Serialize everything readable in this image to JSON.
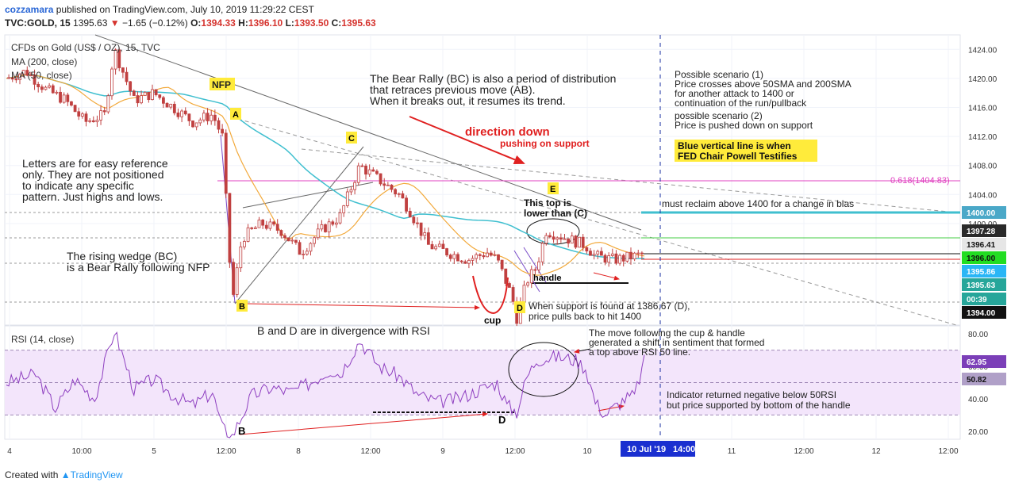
{
  "header": {
    "user": "cozzamara",
    "published": "published on TradingView.com, July 10, 2019 11:29:22 CEST",
    "symbol": "TVC:GOLD, 15",
    "last": "1395.63",
    "change": "−1.65 (−0.12%)",
    "open_label": "O:",
    "open": "1394.33",
    "high_label": "H:",
    "high": "1396.10",
    "low_label": "L:",
    "low": "1393.50",
    "close_label": "C:",
    "close": "1395.63"
  },
  "legend": {
    "title": "CFDs on Gold (US$ / OZ), 15, TVC",
    "ma200": "MA (200, close)",
    "ma50": "MA (50, close)",
    "rsi": "RSI (14, close)"
  },
  "footer": {
    "created": "Created with",
    "brand": "TradingView"
  },
  "colors": {
    "candle": "#c04040",
    "ma50": "#f2a93b",
    "ma200": "#3fbfcf",
    "rsi": "#8e3fc0",
    "support": "#40bfcf",
    "fib": "#e040c0",
    "arrow": "#e02020",
    "label_bg": "#ffeb3b"
  },
  "annotations": {
    "nfp": "NFP",
    "a": "A",
    "b": "B",
    "c": "C",
    "d": "D",
    "e": "E",
    "b_rsi": "B",
    "d_rsi": "D",
    "cup": "cup",
    "handle": "handle",
    "direction": "direction down",
    "pushing": "pushing on support",
    "bear_rally": [
      "The Bear Rally (BC) is also a period of distribution",
      "that retraces previous move (AB).",
      "When it breaks out, it resumes its trend."
    ],
    "letters": [
      "Letters are for easy reference",
      "only. They are not positioned",
      "to indicate any specific",
      "pattern. Just highs and lows."
    ],
    "wedge": [
      "The rising wedge (BC)",
      "is a Bear Rally following NFP"
    ],
    "this_top": [
      "This top is",
      "lower than (C)"
    ],
    "support_text": [
      "When support is found at 1386,67 (D),",
      "price pulls back to hit 1400"
    ],
    "scenario": [
      "Possible scenario (1)",
      "Price crosses above 50SMA and 200SMA",
      "for another attack to 1400 or",
      "continuation of the run/pullback",
      "possible scenario (2)",
      "Price is pushed down on support"
    ],
    "blue_line": [
      "Blue vertical line is when",
      "FED Chair Powell Testifies"
    ],
    "fib": "0.618(1404.83)",
    "reclaim": "must reclaim above 1400 for a change in bias",
    "divergence": "B and D are in divergence with RSI",
    "move": [
      "The move following the cup & handle",
      "generated a shift in sentiment that formed",
      "a top above RSI 50 line."
    ],
    "indicator": [
      "Indicator returned negative below 50RSI",
      "but price supported by bottom of the handle"
    ]
  },
  "chart_data": [
    {
      "type": "candlestick",
      "title": "CFDs on Gold (US$ / OZ), 15, TVC",
      "ylim": [
        1386,
        1426
      ],
      "y_ticks": [
        "1424.00",
        "1420.00",
        "1416.00",
        "1412.00",
        "1408.00",
        "1404.00",
        "1400.00"
      ],
      "x_ticks": [
        "4",
        "10:00",
        "5",
        "12:00",
        "8",
        "12:00",
        "9",
        "12:00",
        "10",
        "14:00",
        "11",
        "12:00",
        "12",
        "12:00"
      ],
      "cursor_label": "10 Jul '19",
      "price_path": [
        [
          0,
          1420
        ],
        [
          4,
          1421
        ],
        [
          8,
          1418.5
        ],
        [
          12,
          1417
        ],
        [
          16,
          1414
        ],
        [
          20,
          1415
        ],
        [
          22,
          1424
        ],
        [
          26,
          1417
        ],
        [
          30,
          1418
        ],
        [
          34,
          1416
        ],
        [
          38,
          1414
        ],
        [
          42,
          1415
        ],
        [
          44,
          1412
        ],
        [
          46,
          1389
        ],
        [
          48,
          1398
        ],
        [
          52,
          1400
        ],
        [
          56,
          1399
        ],
        [
          60,
          1396
        ],
        [
          64,
          1399
        ],
        [
          68,
          1401
        ],
        [
          72,
          1408
        ],
        [
          76,
          1406
        ],
        [
          80,
          1404
        ],
        [
          82,
          1402
        ],
        [
          86,
          1397
        ],
        [
          90,
          1396
        ],
        [
          94,
          1395
        ],
        [
          98,
          1396
        ],
        [
          100,
          1395
        ],
        [
          103,
          1390
        ],
        [
          104,
          1387
        ],
        [
          106,
          1392
        ],
        [
          108,
          1394
        ],
        [
          110,
          1399
        ],
        [
          114,
          1398
        ],
        [
          118,
          1397
        ],
        [
          120,
          1395.5
        ],
        [
          124,
          1395
        ],
        [
          128,
          1395.5
        ],
        [
          130,
          1395.8
        ]
      ],
      "price_labels": [
        {
          "text": "1400.00",
          "value": 1400.0,
          "bg": "#4aa8c8"
        },
        {
          "text": "1397.28",
          "value": 1397.28,
          "bg": "#2a2a2a"
        },
        {
          "text": "1396.41",
          "value": 1396.41,
          "bg": "#e6e6e6"
        },
        {
          "text": "1396.00",
          "value": 1396.0,
          "bg": "#22dd22"
        },
        {
          "text": "1395.86",
          "value": 1395.86,
          "bg": "#29b6f6"
        },
        {
          "text": "1395.63",
          "value": 1395.63,
          "bg": "#26a69a"
        },
        {
          "text": "00:39",
          "value": 1395.2,
          "bg": "#26a69a"
        },
        {
          "text": "1394.00",
          "value": 1394.0,
          "bg": "#111111"
        }
      ],
      "levels": [
        {
          "value": 1404.83,
          "label": "0.618(1404.83)"
        },
        {
          "value": 1400.0,
          "label": "1400.00"
        },
        {
          "value": 1396.0,
          "label": "1396.00"
        }
      ]
    },
    {
      "type": "line",
      "title": "RSI (14, close)",
      "ylim": [
        15,
        85
      ],
      "y_ticks": [
        "80.00",
        "60.00",
        "40.00",
        "20.00"
      ],
      "bands": [
        30,
        50,
        70
      ],
      "value_labels": [
        {
          "text": "62.95",
          "value": 62.95
        },
        {
          "text": "50.82",
          "value": 50.82
        }
      ],
      "rsi_path": [
        [
          0,
          50
        ],
        [
          6,
          55
        ],
        [
          10,
          34
        ],
        [
          14,
          52
        ],
        [
          18,
          40
        ],
        [
          22,
          82
        ],
        [
          26,
          46
        ],
        [
          30,
          52
        ],
        [
          34,
          42
        ],
        [
          38,
          36
        ],
        [
          42,
          44
        ],
        [
          44,
          22
        ],
        [
          46,
          17
        ],
        [
          50,
          42
        ],
        [
          54,
          47
        ],
        [
          58,
          44
        ],
        [
          62,
          50
        ],
        [
          66,
          58
        ],
        [
          68,
          55
        ],
        [
          72,
          76
        ],
        [
          76,
          60
        ],
        [
          80,
          54
        ],
        [
          84,
          42
        ],
        [
          88,
          38
        ],
        [
          92,
          40
        ],
        [
          96,
          45
        ],
        [
          100,
          50
        ],
        [
          102,
          36
        ],
        [
          104,
          32
        ],
        [
          106,
          53
        ],
        [
          108,
          64
        ],
        [
          112,
          66
        ],
        [
          116,
          64
        ],
        [
          118,
          59
        ],
        [
          120,
          38
        ],
        [
          122,
          30
        ],
        [
          126,
          40
        ],
        [
          128,
          42
        ],
        [
          130,
          63
        ]
      ]
    }
  ]
}
